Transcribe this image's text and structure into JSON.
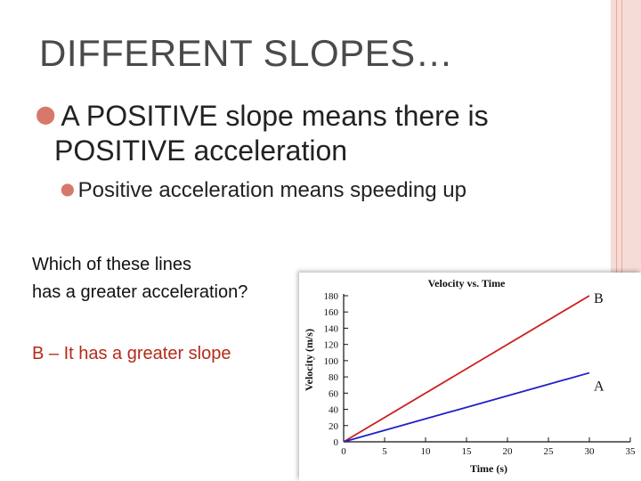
{
  "slide": {
    "title": "DIFFERENT SLOPES…",
    "bullet_main_line1": "A POSITIVE slope means there is",
    "bullet_main_line2": "POSITIVE acceleration",
    "bullet_sub": "Positive acceleration means speeding up",
    "question_line1": "Which of these lines",
    "question_line2": "has a greater acceleration?",
    "answer": "B – It has a greater slope"
  },
  "colors": {
    "accent": "#d7796a",
    "answer": "#b42a1a",
    "series_b": "#cc1f1f",
    "series_a": "#2020c8"
  },
  "chart_data": {
    "type": "line",
    "title": "Velocity vs. Time",
    "xlabel": "Time (s)",
    "ylabel": "Velocity (m/s)",
    "xlim": [
      0,
      35
    ],
    "ylim": [
      0,
      180
    ],
    "xticks": [
      "0",
      "5",
      "10",
      "15",
      "20",
      "25",
      "30",
      "35"
    ],
    "yticks": [
      "0",
      "20",
      "40",
      "60",
      "80",
      "100",
      "120",
      "140",
      "160",
      "180"
    ],
    "grid": false,
    "series": [
      {
        "name": "B",
        "x": [
          0,
          30
        ],
        "y": [
          0,
          180
        ]
      },
      {
        "name": "A",
        "x": [
          0,
          30
        ],
        "y": [
          0,
          85
        ]
      }
    ]
  }
}
